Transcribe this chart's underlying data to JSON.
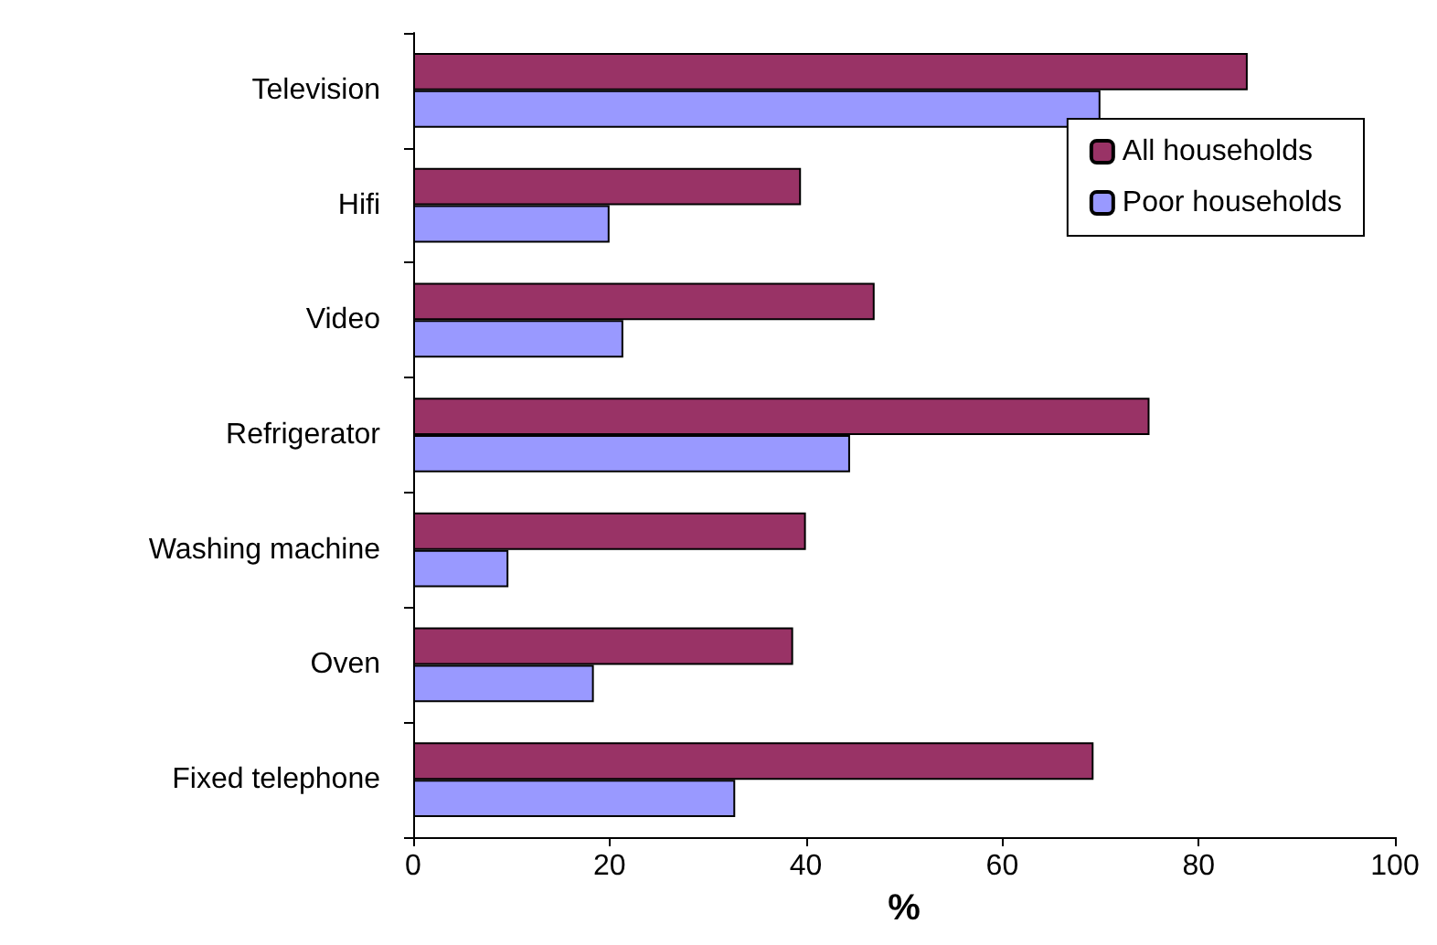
{
  "chart_data": {
    "type": "bar",
    "orientation": "horizontal",
    "xlabel": "%",
    "categories": [
      "Television",
      "Hifi",
      "Video",
      "Refrigerator",
      "Washing machine",
      "Oven",
      "Fixed telephone"
    ],
    "series": [
      {
        "name": "All households",
        "color": "#993366",
        "values": [
          85,
          39.5,
          47,
          75,
          40,
          38.7,
          69.3
        ]
      },
      {
        "name": "Poor households",
        "color": "#9999ff",
        "values": [
          70,
          20,
          21.4,
          44.5,
          9.7,
          18.4,
          32.8
        ]
      }
    ],
    "xlim": [
      0,
      100
    ],
    "xticks": [
      0,
      20,
      40,
      60,
      80,
      100
    ],
    "grid": false,
    "legend": "top right"
  }
}
